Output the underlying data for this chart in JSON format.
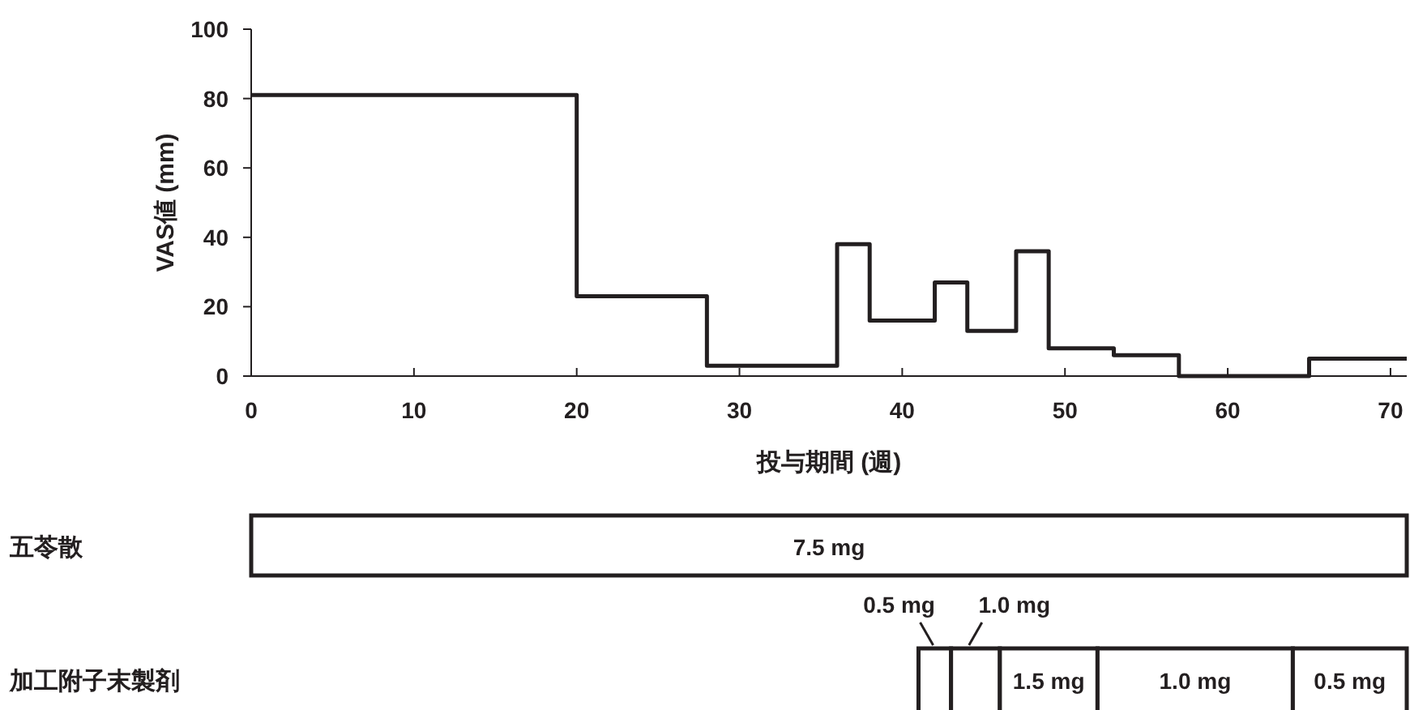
{
  "chart_data": [
    {
      "type": "step",
      "xlabel": "投与期間 (週)",
      "ylabel": "VAS値 (mm)",
      "x": [
        0,
        20,
        28,
        36,
        38,
        42,
        44,
        47,
        49,
        53,
        57,
        65,
        71
      ],
      "values": [
        81,
        23,
        3,
        38,
        16,
        27,
        13,
        36,
        8,
        6,
        0,
        5,
        5
      ],
      "color": "#231f20",
      "xlim": [
        0,
        71
      ],
      "ylim": [
        0,
        100
      ],
      "xticks": [
        0,
        10,
        20,
        30,
        40,
        50,
        60,
        70
      ],
      "yticks": [
        0,
        20,
        40,
        60,
        80,
        100
      ],
      "grid": false
    },
    {
      "type": "bar",
      "orientation": "horizontal",
      "categories": [
        "五苓散",
        "加工附子末製剤"
      ],
      "xlim": [
        0,
        71
      ],
      "series": [
        {
          "color": "#ffffff",
          "values": [
            71,
            null
          ],
          "base": [
            0,
            null
          ]
        },
        {
          "color": "#ffffff",
          "values": [
            null,
            2
          ],
          "base": [
            null,
            41
          ]
        },
        {
          "color": "#ffffff",
          "values": [
            null,
            3
          ],
          "base": [
            null,
            43
          ]
        },
        {
          "color": "#ffffff",
          "values": [
            null,
            6
          ],
          "base": [
            null,
            46
          ]
        },
        {
          "color": "#ffffff",
          "values": [
            null,
            12
          ],
          "base": [
            null,
            52
          ]
        },
        {
          "color": "#ffffff",
          "values": [
            null,
            7
          ],
          "base": [
            null,
            64
          ]
        }
      ],
      "annotations": [
        "7.5 mg",
        "0.5 mg",
        "1.0 mg",
        "1.5 mg",
        "1.0 mg",
        "0.5 mg"
      ]
    }
  ]
}
